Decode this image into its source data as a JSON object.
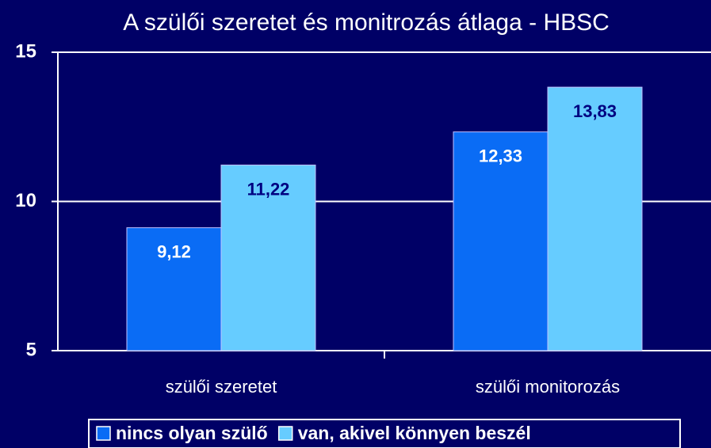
{
  "chart_data": {
    "type": "bar",
    "title": "A szülői szeretet és monitrozás átlaga - HBSC",
    "categories": [
      "szülői szeretet",
      "szülői monitorozás"
    ],
    "series": [
      {
        "name": "nincs olyan szülő",
        "color": "#0a6cf5",
        "label_color": "#ffffff",
        "values": [
          9.12,
          12.33
        ],
        "value_labels": [
          "9,12",
          "12,33"
        ]
      },
      {
        "name": "van, akivel könnyen beszél",
        "color": "#66ccff",
        "label_color": "#000080",
        "values": [
          11.22,
          13.83
        ],
        "value_labels": [
          "11,22",
          "13,83"
        ]
      }
    ],
    "ylim": [
      5,
      15
    ],
    "yticks": [
      5,
      10,
      15
    ],
    "grid": true,
    "legend": "bottom"
  }
}
